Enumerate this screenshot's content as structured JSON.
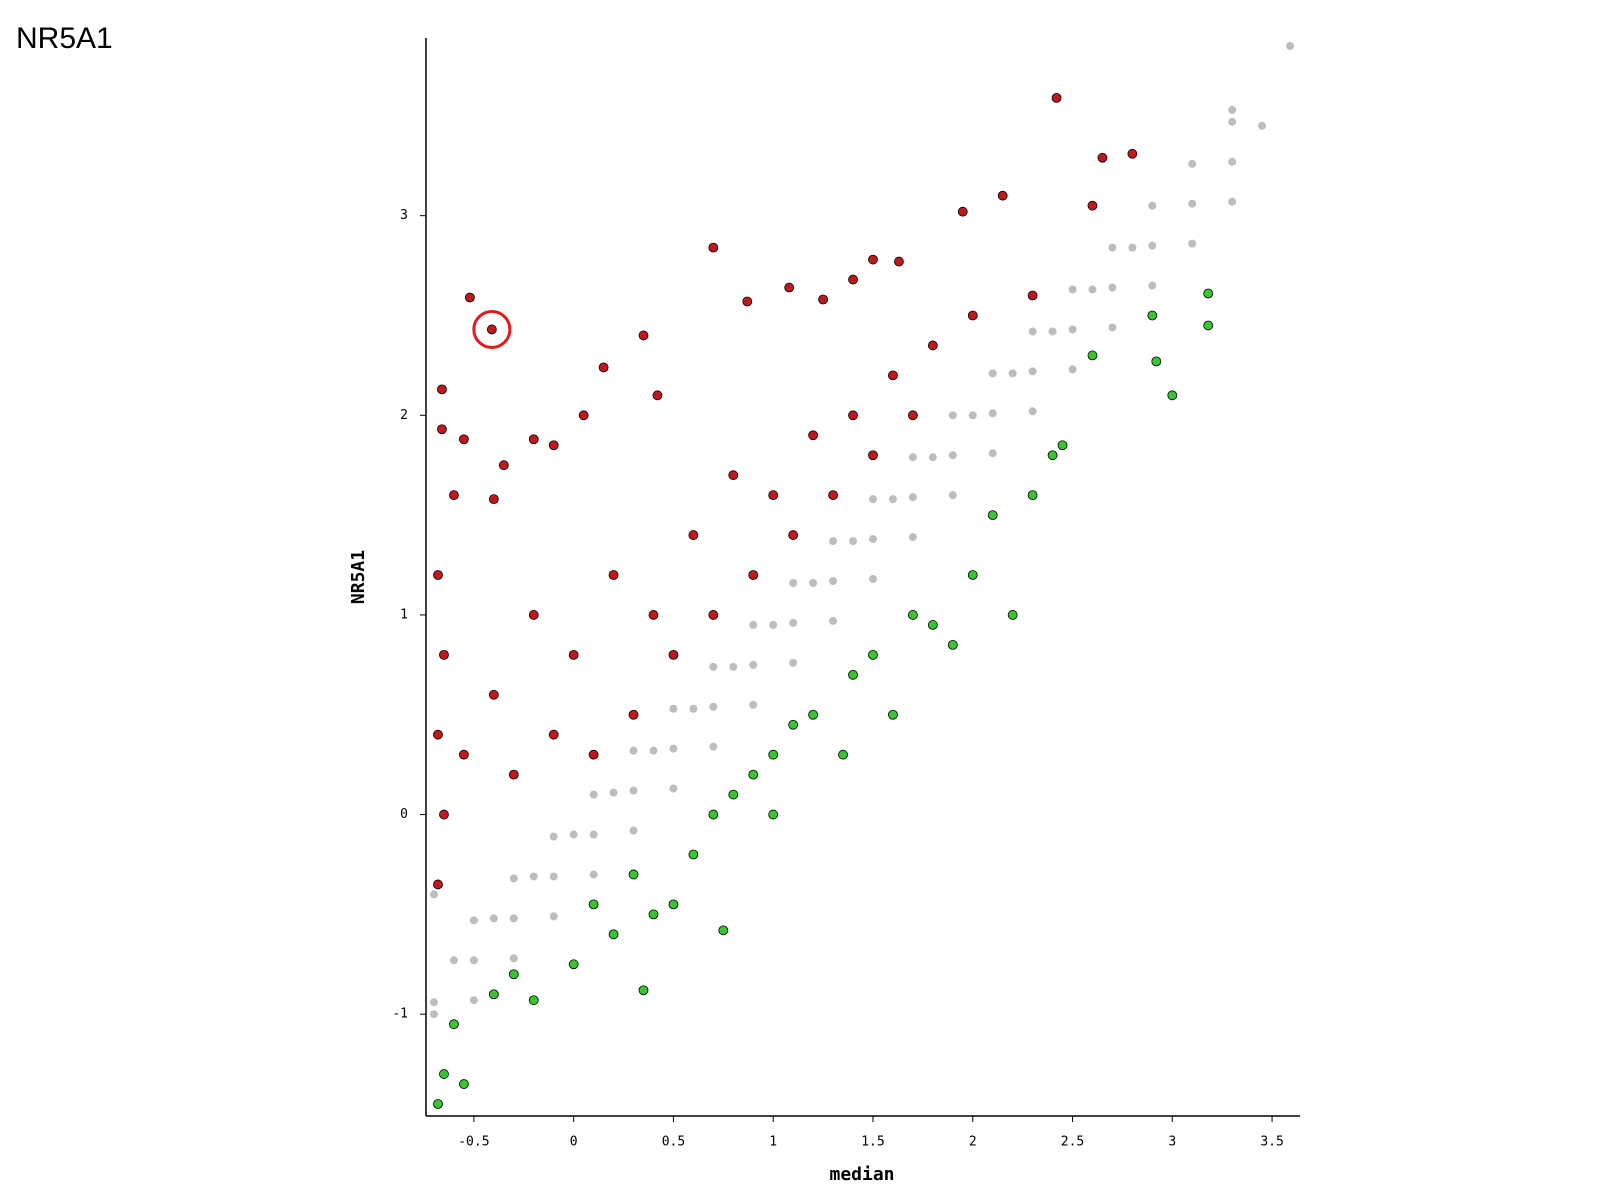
{
  "chart_data": {
    "type": "scatter",
    "title": "NR5A1",
    "xlabel": "median",
    "ylabel": "NR5A1",
    "xlim": [
      -0.74,
      3.64
    ],
    "ylim": [
      -1.51,
      3.89
    ],
    "xticks": [
      -0.5,
      0,
      0.5,
      1,
      1.5,
      2,
      2.5,
      3,
      3.5
    ],
    "yticks": [
      -1,
      0,
      1,
      2,
      3
    ],
    "grid": false,
    "series": [
      {
        "color": "#bdbdbd",
        "outline": false,
        "x": [
          -0.7,
          -0.5,
          -0.3,
          -0.1,
          0.1,
          0.3,
          0.5,
          0.7,
          0.9,
          1.1,
          1.3,
          1.5,
          1.7,
          1.9,
          2.1,
          2.3,
          2.5,
          2.7,
          2.9,
          3.1,
          3.3,
          -0.7,
          -0.5,
          -0.3,
          -0.1,
          0.1,
          0.3,
          0.5,
          0.7,
          0.9,
          1.1,
          1.3,
          1.5,
          1.7,
          1.9,
          2.1,
          2.3,
          2.5,
          2.7,
          2.9,
          3.1,
          3.3,
          -0.7,
          -0.5,
          -0.3,
          -0.1,
          0.1,
          0.3,
          0.5,
          0.7,
          0.9,
          1.1,
          1.3,
          1.5,
          1.7,
          1.9,
          2.1,
          2.3,
          2.5,
          2.7,
          2.9,
          3.1,
          3.3,
          -0.6,
          -0.4,
          -0.2,
          0,
          0.2,
          0.4,
          0.6,
          0.8,
          1,
          1.2,
          1.4,
          1.6,
          1.8,
          2,
          2.2,
          2.4,
          2.6,
          2.8,
          3.59,
          3.45,
          3.3
        ],
        "y": [
          -0.94,
          -0.73,
          -0.52,
          -0.31,
          -0.1,
          0.12,
          0.33,
          0.54,
          0.75,
          0.96,
          1.17,
          1.38,
          1.59,
          1.8,
          2.01,
          2.22,
          2.43,
          2.64,
          2.85,
          3.06,
          3.27,
          -0.4,
          -0.53,
          -0.32,
          -0.11,
          0.1,
          0.32,
          0.53,
          0.74,
          0.95,
          1.16,
          1.37,
          1.58,
          1.79,
          2,
          2.21,
          2.42,
          2.63,
          2.84,
          3.05,
          3.26,
          3.47,
          -1.0,
          -0.93,
          -0.72,
          -0.51,
          -0.3,
          -0.08,
          0.13,
          0.34,
          0.55,
          0.76,
          0.97,
          1.18,
          1.39,
          1.6,
          1.81,
          2.02,
          2.23,
          2.44,
          2.65,
          2.86,
          3.07,
          -0.73,
          -0.52,
          -0.31,
          -0.1,
          0.11,
          0.32,
          0.53,
          0.74,
          0.95,
          1.16,
          1.37,
          1.58,
          1.79,
          2,
          2.21,
          2.42,
          2.63,
          2.84,
          3.85,
          3.45,
          3.53
        ]
      },
      {
        "color": "#c0181d",
        "outline": true,
        "x": [
          -0.52,
          -0.41,
          -0.66,
          -0.66,
          -0.55,
          -0.6,
          -0.4,
          -0.35,
          -0.2,
          -0.1,
          0.05,
          0.15,
          0.35,
          0.42,
          0.7,
          0.87,
          1.08,
          1.25,
          1.4,
          1.5,
          1.63,
          1.95,
          2.15,
          2.42,
          2.65,
          2.8,
          2.6,
          2.3,
          -0.68,
          -0.65,
          -0.68,
          -0.65,
          -0.68,
          -0.55,
          -0.4,
          -0.2,
          0,
          0.2,
          0.4,
          0.6,
          0.8,
          1,
          1.2,
          1.4,
          1.6,
          1.8,
          2,
          0.3,
          0.5,
          0.7,
          0.9,
          1.1,
          1.3,
          1.5,
          1.7,
          -0.3,
          -0.1,
          0.1
        ],
        "y": [
          2.59,
          2.43,
          2.13,
          1.93,
          1.88,
          1.6,
          1.58,
          1.75,
          1.88,
          1.85,
          2,
          2.24,
          2.4,
          2.1,
          2.84,
          2.57,
          2.64,
          2.58,
          2.68,
          2.78,
          2.77,
          3.02,
          3.1,
          3.59,
          3.29,
          3.31,
          3.05,
          2.6,
          1.2,
          0.8,
          0.4,
          0,
          -0.35,
          0.3,
          0.6,
          1,
          0.8,
          1.2,
          1,
          1.4,
          1.7,
          1.6,
          1.9,
          2,
          2.2,
          2.35,
          2.5,
          0.5,
          0.8,
          1,
          1.2,
          1.4,
          1.6,
          1.8,
          2,
          0.2,
          0.4,
          0.3
        ]
      },
      {
        "color": "#39c431",
        "outline": true,
        "x": [
          -0.68,
          -0.65,
          -0.55,
          -0.6,
          -0.4,
          -0.2,
          0,
          0.2,
          0.35,
          0.5,
          0.75,
          0.6,
          0.8,
          1,
          1.2,
          1.35,
          1.5,
          1.6,
          1.8,
          1.9,
          2,
          2.2,
          2.3,
          2.45,
          2.6,
          2.9,
          3,
          3.18,
          3.18,
          2.92,
          1.4,
          1,
          0.4,
          -0.3,
          0.1,
          0.7,
          1.7,
          2.1,
          2.4,
          0.3,
          0.9,
          1.1
        ],
        "y": [
          -1.45,
          -1.3,
          -1.35,
          -1.05,
          -0.9,
          -0.93,
          -0.75,
          -0.6,
          -0.88,
          -0.45,
          -0.58,
          -0.2,
          0.1,
          0.3,
          0.5,
          0.3,
          0.8,
          0.5,
          0.95,
          0.85,
          1.2,
          1,
          1.6,
          1.85,
          2.3,
          2.5,
          2.1,
          2.61,
          2.45,
          2.27,
          0.7,
          0,
          -0.5,
          -0.8,
          -0.45,
          0,
          1,
          1.5,
          1.8,
          -0.3,
          0.2,
          0.45
        ]
      }
    ]
  }
}
